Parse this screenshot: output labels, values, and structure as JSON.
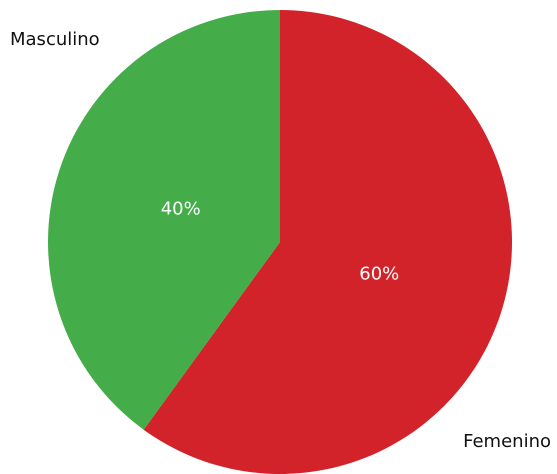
{
  "chart_data": {
    "type": "pie",
    "categories": [
      "Femenino",
      "Masculino"
    ],
    "values": [
      60,
      40
    ],
    "value_labels": [
      "60%",
      "40%"
    ],
    "colors": [
      "#d2232a",
      "#44ad4a"
    ]
  }
}
